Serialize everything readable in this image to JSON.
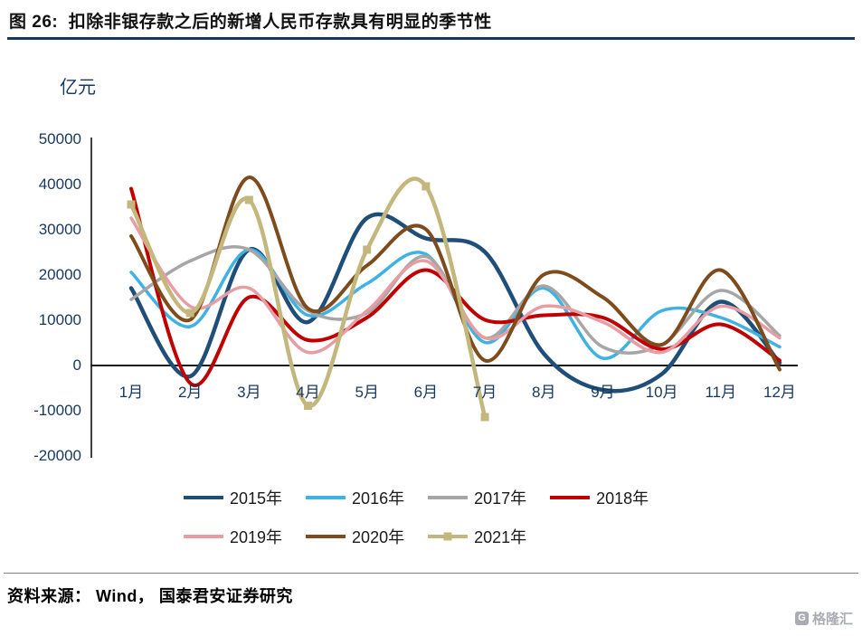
{
  "header": {
    "title": "图 26:  扣除非银存款之后的新增人民币存款具有明显的季节性"
  },
  "footer": {
    "source": "资料来源： Wind， 国泰君安证券研究",
    "watermark": "格隆汇"
  },
  "chart_data": {
    "type": "line",
    "title": "扣除非银存款之后的新增人民币存款具有明显的季节性",
    "ylabel": "亿元",
    "xlabel": "",
    "ylim": [
      -20000,
      50000
    ],
    "grid": false,
    "legend_position": "bottom",
    "y_ticks": [
      50000,
      40000,
      30000,
      20000,
      10000,
      0,
      -10000,
      -20000
    ],
    "categories": [
      "1月",
      "2月",
      "3月",
      "4月",
      "5月",
      "6月",
      "7月",
      "8月",
      "9月",
      "10月",
      "11月",
      "12月"
    ],
    "series": [
      {
        "name": "2015年",
        "color": "#1F4E79",
        "line_width": 4.5,
        "values": [
          17000,
          -2500,
          25500,
          9500,
          32500,
          28000,
          25000,
          2500,
          -5500,
          -2000,
          14000,
          500
        ]
      },
      {
        "name": "2016年",
        "color": "#3FB1E3",
        "line_width": 3.5,
        "values": [
          20500,
          8500,
          25500,
          11000,
          18000,
          24500,
          5000,
          17000,
          1500,
          12000,
          10500,
          4000
        ]
      },
      {
        "name": "2017年",
        "color": "#A6A6A6",
        "line_width": 3.5,
        "values": [
          14500,
          23000,
          25500,
          12000,
          11500,
          24000,
          6000,
          17500,
          4000,
          4500,
          16500,
          6500
        ]
      },
      {
        "name": "2018年",
        "color": "#C00000",
        "line_width": 4,
        "values": [
          39000,
          -4000,
          15000,
          5500,
          10500,
          21000,
          10000,
          11000,
          10500,
          3500,
          9000,
          1000
        ]
      },
      {
        "name": "2019年",
        "color": "#E79DA4",
        "line_width": 3.5,
        "values": [
          32500,
          13000,
          17000,
          2800,
          12000,
          23000,
          6000,
          13000,
          9500,
          2800,
          13000,
          6000
        ]
      },
      {
        "name": "2020年",
        "color": "#7E4B1C",
        "line_width": 4,
        "values": [
          28500,
          10000,
          41500,
          12500,
          22000,
          30000,
          1000,
          20000,
          15000,
          4500,
          21000,
          -1000
        ]
      },
      {
        "name": "2021年",
        "color": "#C3B77E",
        "line_width": 4.5,
        "marker": "square",
        "values": [
          35500,
          11500,
          36500,
          -9000,
          25500,
          39500,
          -11500
        ]
      }
    ],
    "legend_rows": [
      [
        "2015年",
        "2016年",
        "2017年",
        "2018年"
      ],
      [
        "2019年",
        "2020年",
        "2021年"
      ]
    ]
  }
}
